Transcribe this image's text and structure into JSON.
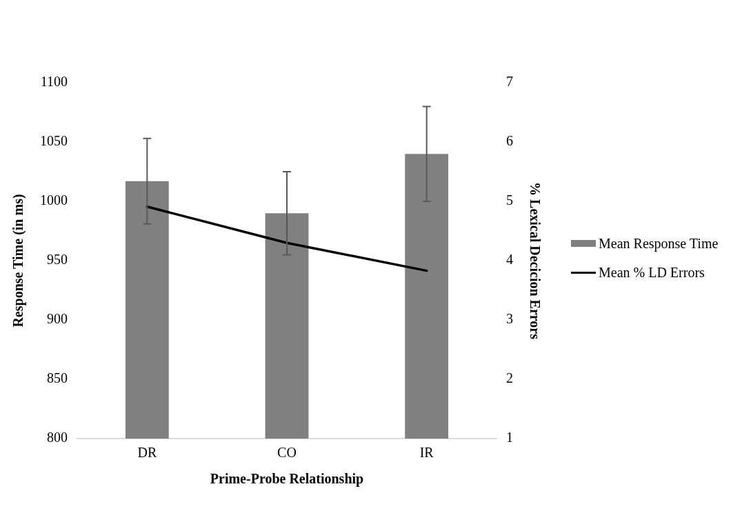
{
  "chart_data": {
    "type": "bar",
    "xlabel": "Prime-Probe Relationship",
    "ylabel": "Response Time (in ms)",
    "y2label": "% Lexical Decicion Errors",
    "categories": [
      "DR",
      "CO",
      "IR"
    ],
    "series": [
      {
        "name": "Mean Response Time",
        "color": "#808080",
        "values": [
          1017,
          990,
          1040
        ],
        "errors": [
          36,
          35,
          40
        ]
      },
      {
        "name": "Mean % LD Errors",
        "type": "line",
        "color": "#000000",
        "axis": "y2",
        "values": [
          4.91,
          4.3,
          3.83
        ]
      }
    ],
    "ylim": [
      800,
      1100
    ],
    "yticks": [
      800,
      850,
      900,
      950,
      1000,
      1050,
      1100
    ],
    "y2lim": [
      1,
      7
    ],
    "y2ticks": [
      1,
      2,
      3,
      4,
      5,
      6,
      7
    ],
    "grid": false,
    "legend": "right",
    "marker": "none"
  }
}
